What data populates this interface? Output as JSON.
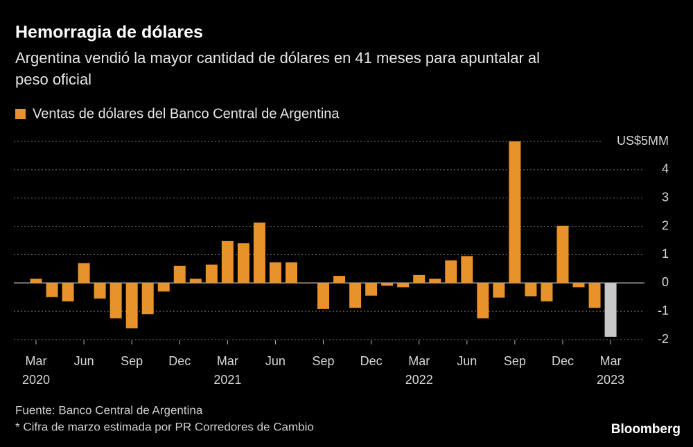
{
  "chart_data": {
    "type": "bar",
    "title": "Hemorragia de dólares",
    "subtitle_lines": [
      "Argentina vendió la mayor cantidad de dólares en 41 meses para apuntalar al",
      "peso oficial"
    ],
    "series": [
      {
        "name": "Ventas de dólares del Banco Central de Argentina",
        "color": "#e8922b",
        "values": [
          0.15,
          -0.5,
          -0.65,
          0.7,
          -0.55,
          -1.25,
          -1.6,
          -1.1,
          -0.3,
          0.6,
          0.15,
          0.65,
          1.48,
          1.4,
          2.13,
          0.73,
          0.73,
          -0.02,
          -0.92,
          0.25,
          -0.88,
          -0.45,
          -0.1,
          -0.15,
          0.28,
          0.15,
          0.8,
          0.95,
          -1.25,
          -0.52,
          5.0,
          -0.47,
          -0.65,
          2.02,
          -0.15,
          -0.88,
          -1.9
        ],
        "colors": [
          "#e8922b",
          "#e8922b",
          "#e8922b",
          "#e8922b",
          "#e8922b",
          "#e8922b",
          "#e8922b",
          "#e8922b",
          "#e8922b",
          "#e8922b",
          "#e8922b",
          "#e8922b",
          "#e8922b",
          "#e8922b",
          "#e8922b",
          "#e8922b",
          "#e8922b",
          "#e8922b",
          "#e8922b",
          "#e8922b",
          "#e8922b",
          "#e8922b",
          "#e8922b",
          "#e8922b",
          "#e8922b",
          "#e8922b",
          "#e8922b",
          "#e8922b",
          "#e8922b",
          "#e8922b",
          "#e8922b",
          "#e8922b",
          "#e8922b",
          "#e8922b",
          "#e8922b",
          "#e8922b",
          "#c8c8c8"
        ]
      }
    ],
    "categories": [
      "Mar",
      null,
      null,
      "Jun",
      null,
      null,
      "Sep",
      null,
      null,
      "Dec",
      null,
      null,
      "Mar",
      null,
      null,
      "Jun",
      null,
      null,
      "Sep",
      null,
      null,
      "Dec",
      null,
      null,
      "Mar",
      null,
      null,
      "Jun",
      null,
      null,
      "Sep",
      null,
      null,
      "Dec",
      null,
      null,
      "Mar"
    ],
    "category_years": [
      "2020",
      null,
      null,
      null,
      null,
      null,
      null,
      null,
      null,
      null,
      null,
      null,
      "2021",
      null,
      null,
      null,
      null,
      null,
      null,
      null,
      null,
      null,
      null,
      null,
      "2022",
      null,
      null,
      null,
      null,
      null,
      null,
      null,
      null,
      null,
      null,
      null,
      "2023"
    ],
    "ylim": [
      -2,
      5
    ],
    "yticks": [
      -2,
      -1,
      0,
      1,
      2,
      3,
      4,
      {
        "value": 5,
        "label": "US$5MM"
      }
    ],
    "grid": true,
    "notes": [
      "Fuente: Banco Central de Argentina",
      "* Cifra de marzo estimada por PR Corredores de Cambio"
    ],
    "brand": "Bloomberg"
  }
}
